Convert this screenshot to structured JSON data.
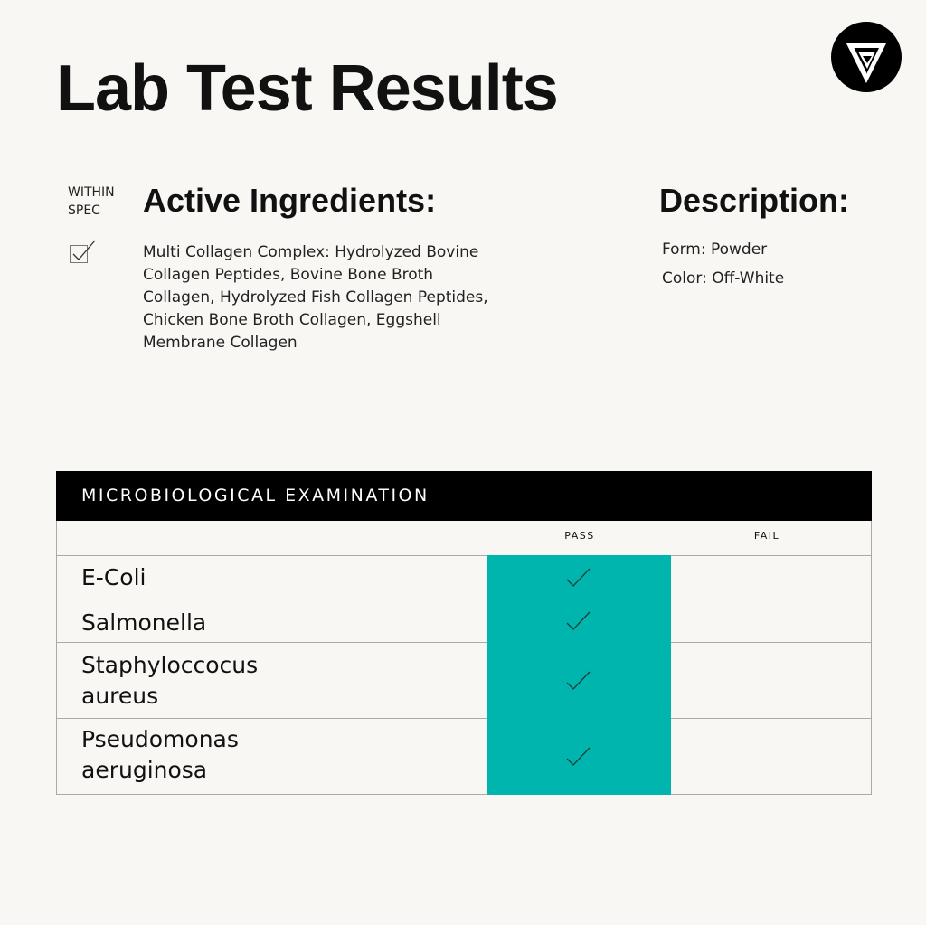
{
  "title": "Lab Test Results",
  "logo": {
    "icon": "brand-triangle-logo",
    "background": "#000000"
  },
  "within_spec": {
    "line1": "WITHIN",
    "line2": "SPEC",
    "checked": true
  },
  "active_ingredients": {
    "heading": "Active Ingredients:",
    "lines": [
      "Multi Collagen Complex: Hydrolyzed Bovine",
      "Collagen Peptides, Bovine Bone Broth",
      "Collagen, Hydrolyzed Fish Collagen Peptides,",
      "Chicken Bone Broth Collagen, Eggshell",
      "Membrane Collagen"
    ]
  },
  "description": {
    "heading": "Description:",
    "form": "Form: Powder",
    "color": "Color: Off-White"
  },
  "table": {
    "heading": "MICROBIOLOGICAL EXAMINATION",
    "columns": [
      "PASS",
      "FAIL"
    ],
    "pass_color": "#00b5ad",
    "rows": [
      {
        "line1": "E-Coli",
        "line2": "",
        "result": "pass"
      },
      {
        "line1": "Salmonella",
        "line2": "",
        "result": "pass"
      },
      {
        "line1": "Staphyloccocus",
        "line2": "aureus",
        "result": "pass"
      },
      {
        "line1": "Pseudomonas",
        "line2": "aeruginosa",
        "result": "pass"
      }
    ]
  }
}
